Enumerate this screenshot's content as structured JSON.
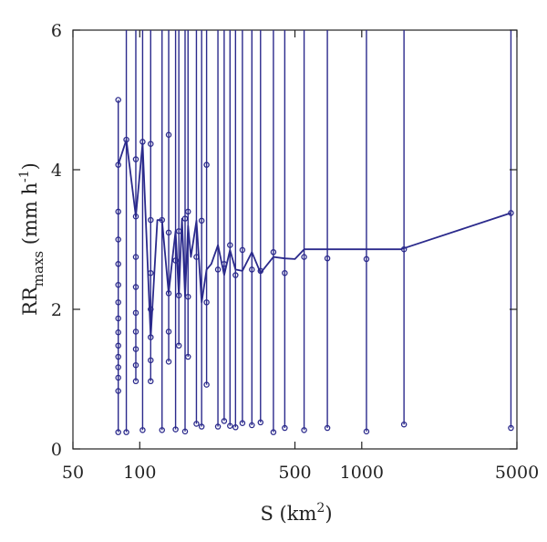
{
  "chart_data": {
    "type": "line",
    "xscale": "log",
    "xlim": [
      50,
      5000
    ],
    "ylim": [
      0,
      6
    ],
    "xticks": [
      50,
      100,
      500,
      1000,
      5000
    ],
    "yticks": [
      0,
      2,
      4,
      6
    ],
    "xlabel": {
      "base": "S (km",
      "sup": "2",
      "end": ")"
    },
    "ylabel": {
      "base": "RR",
      "sub": "maxs",
      "mid": " (mm h",
      "sup": "-1",
      "end": ")"
    },
    "grid": false,
    "series_color": "#2b2a8c",
    "mean_line": {
      "x": [
        80,
        87,
        96,
        103,
        112,
        120,
        126,
        135,
        140,
        145,
        150,
        155,
        160,
        165,
        170,
        180,
        190,
        200,
        210,
        225,
        240,
        255,
        270,
        290,
        320,
        350,
        400,
        450,
        500,
        550,
        650,
        800,
        1000,
        1500,
        4700
      ],
      "y": [
        4.07,
        4.43,
        3.33,
        4.38,
        1.6,
        3.28,
        3.28,
        2.23,
        2.7,
        3.12,
        2.2,
        3.3,
        2.18,
        3.2,
        2.75,
        3.27,
        2.1,
        2.57,
        2.65,
        2.92,
        2.49,
        2.85,
        2.57,
        2.55,
        2.82,
        2.52,
        2.75,
        2.73,
        2.72,
        2.86,
        2.86,
        2.86,
        2.86,
        2.86,
        3.38
      ]
    },
    "groups": [
      {
        "x": 80,
        "points": [
          5.0,
          4.07,
          3.4,
          3.0,
          2.65,
          2.35,
          2.1,
          1.87,
          1.67,
          1.48,
          1.32,
          1.17,
          1.02,
          0.83,
          0.24
        ],
        "top": 5.0
      },
      {
        "x": 87,
        "points": [
          4.43,
          0.24
        ],
        "top": 6
      },
      {
        "x": 96,
        "points": [
          4.15,
          3.33,
          2.75,
          2.32,
          1.95,
          1.68,
          1.43,
          1.2,
          0.97
        ],
        "top": 6
      },
      {
        "x": 103,
        "points": [
          4.4,
          0.27
        ],
        "top": 6
      },
      {
        "x": 112,
        "points": [
          4.37,
          3.28,
          2.52,
          2.0,
          1.6,
          1.27,
          0.97
        ],
        "top": 6
      },
      {
        "x": 126,
        "points": [
          3.28,
          0.27
        ],
        "top": 6
      },
      {
        "x": 135,
        "points": [
          4.5,
          3.1,
          2.23,
          1.68,
          1.25
        ],
        "top": 6
      },
      {
        "x": 145,
        "points": [
          2.7,
          0.28
        ],
        "top": 6
      },
      {
        "x": 150,
        "points": [
          3.12,
          2.2,
          1.48
        ],
        "top": 6
      },
      {
        "x": 160,
        "points": [
          3.3,
          0.25
        ],
        "top": 6
      },
      {
        "x": 165,
        "points": [
          3.4,
          2.18,
          1.32
        ],
        "top": 6
      },
      {
        "x": 180,
        "points": [
          2.75,
          0.36
        ],
        "top": 6
      },
      {
        "x": 190,
        "points": [
          3.27,
          0.32
        ],
        "top": 6
      },
      {
        "x": 200,
        "points": [
          4.07,
          2.1,
          0.92
        ],
        "top": 6
      },
      {
        "x": 225,
        "points": [
          2.57,
          0.32
        ],
        "top": 6
      },
      {
        "x": 240,
        "points": [
          2.65,
          0.4
        ],
        "top": 6
      },
      {
        "x": 255,
        "points": [
          2.92,
          0.33
        ],
        "top": 6
      },
      {
        "x": 270,
        "points": [
          2.49,
          0.31
        ],
        "top": 6
      },
      {
        "x": 290,
        "points": [
          2.85,
          0.37
        ],
        "top": 6
      },
      {
        "x": 320,
        "points": [
          2.57,
          0.34
        ],
        "top": 6
      },
      {
        "x": 350,
        "points": [
          2.55,
          0.38
        ],
        "top": 6
      },
      {
        "x": 400,
        "points": [
          2.82,
          0.24
        ],
        "top": 6
      },
      {
        "x": 450,
        "points": [
          2.52,
          0.3
        ],
        "top": 6
      },
      {
        "x": 550,
        "points": [
          2.75,
          0.27
        ],
        "top": 6
      },
      {
        "x": 700,
        "points": [
          2.73,
          0.3
        ],
        "top": 6
      },
      {
        "x": 1050,
        "points": [
          2.72,
          0.25
        ],
        "top": 6
      },
      {
        "x": 1550,
        "points": [
          2.86,
          0.35
        ],
        "top": 6
      },
      {
        "x": 4700,
        "points": [
          3.38,
          0.3
        ],
        "top": 6
      }
    ]
  }
}
